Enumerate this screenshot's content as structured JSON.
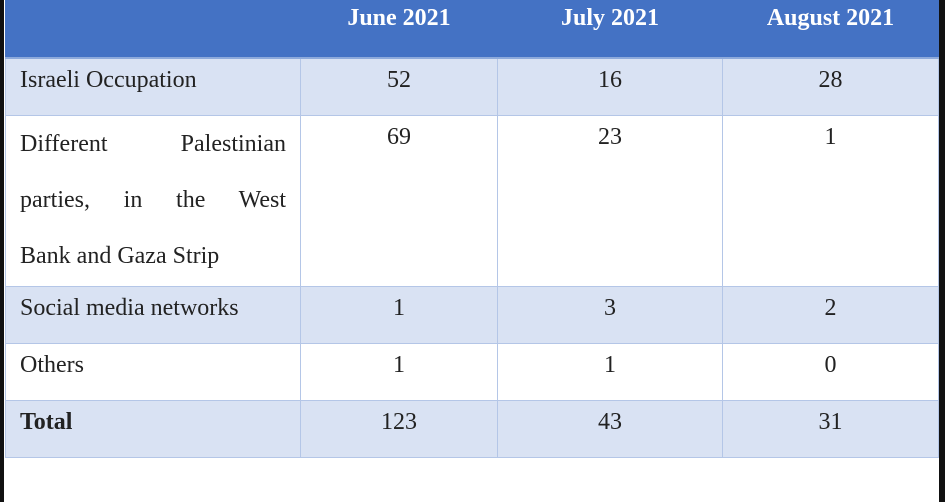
{
  "table": {
    "header": [
      "",
      "June 2021",
      "July 2021",
      "August 2021"
    ],
    "rows": [
      {
        "label": "Israeli Occupation",
        "values": [
          "52",
          "16",
          "28"
        ]
      },
      {
        "label_lines": [
          "Different Palestinian",
          "parties, in the West",
          "Bank and Gaza Strip"
        ],
        "values": [
          "69",
          "23",
          "1"
        ]
      },
      {
        "label": "Social media networks",
        "values": [
          "1",
          "3",
          "2"
        ]
      },
      {
        "label": "Others",
        "values": [
          "1",
          "1",
          "0"
        ]
      },
      {
        "label": "Total",
        "values": [
          "123",
          "43",
          "31"
        ]
      }
    ]
  },
  "colors": {
    "header_bg": "#4472c4",
    "stripe_bg": "#d9e2f3",
    "header_text": "#ffffff"
  }
}
